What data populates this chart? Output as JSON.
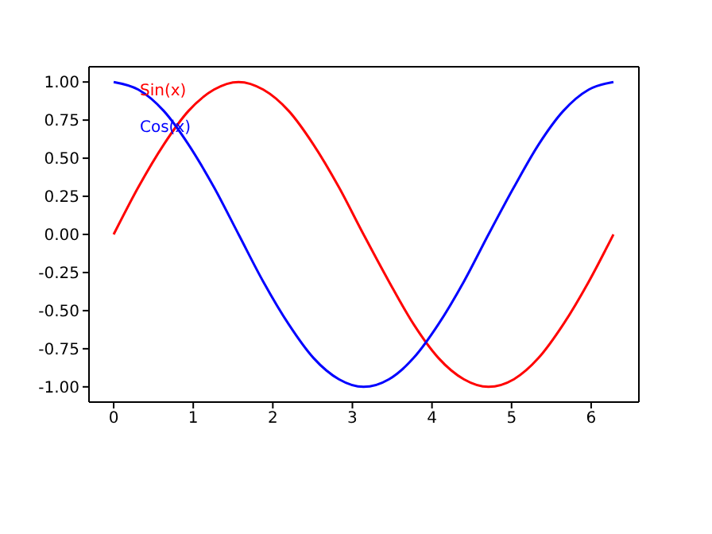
{
  "chart_data": {
    "type": "line",
    "x": [
      0,
      0.31,
      0.63,
      0.94,
      1.26,
      1.57,
      1.88,
      2.2,
      2.51,
      2.83,
      3.14,
      3.46,
      3.77,
      4.08,
      4.4,
      4.71,
      5.03,
      5.34,
      5.65,
      5.97,
      6.28
    ],
    "series": [
      {
        "name": "Sin(x)",
        "color": "#ff0000",
        "values": [
          0,
          0.31,
          0.59,
          0.81,
          0.95,
          1,
          0.95,
          0.81,
          0.59,
          0.31,
          0,
          -0.31,
          -0.59,
          -0.81,
          -0.95,
          -1,
          -0.95,
          -0.81,
          -0.59,
          -0.31,
          0
        ]
      },
      {
        "name": "Cos(x)",
        "color": "#0000ff",
        "values": [
          1,
          0.95,
          0.81,
          0.59,
          0.31,
          0,
          -0.31,
          -0.59,
          -0.81,
          -0.95,
          -1,
          -0.95,
          -0.81,
          -0.59,
          -0.31,
          0,
          0.31,
          0.59,
          0.81,
          0.95,
          1
        ]
      }
    ],
    "xlim": [
      -0.31,
      6.6
    ],
    "xticks": [
      0,
      1,
      2,
      3,
      4,
      5,
      6
    ],
    "ylim": [
      -1.1,
      1.1
    ],
    "yticks": [
      {
        "value": -1,
        "label": "-1.00"
      },
      {
        "value": -0.75,
        "label": "-0.75"
      },
      {
        "value": -0.5,
        "label": "-0.50"
      },
      {
        "value": -0.25,
        "label": "-0.25"
      },
      {
        "value": 0,
        "label": "0.00"
      },
      {
        "value": 0.25,
        "label": "0.25"
      },
      {
        "value": 0.5,
        "label": "0.50"
      },
      {
        "value": 0.75,
        "label": "0.75"
      },
      {
        "value": 1,
        "label": "1.00"
      }
    ],
    "legend": "top left",
    "grid": false
  }
}
